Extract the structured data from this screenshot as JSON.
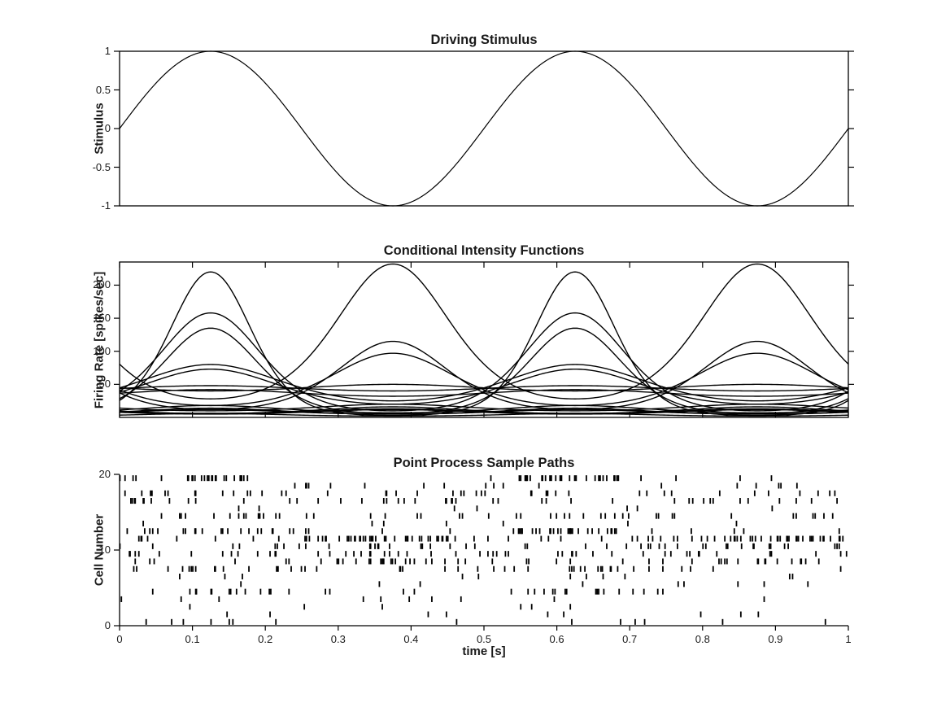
{
  "figure": {
    "background": "#ffffff",
    "line_color": "#000000",
    "text_color": "#1a1a1a"
  },
  "chart_data": [
    {
      "id": "stimulus",
      "type": "line",
      "title": "Driving Stimulus",
      "ylabel": "Stimulus",
      "xlim": [
        0,
        1
      ],
      "ylim": [
        -1,
        1
      ],
      "yticks": [
        {
          "value": 1,
          "label": "1"
        },
        {
          "value": 0.5,
          "label": "0.5"
        },
        {
          "value": 0,
          "label": "0"
        },
        {
          "value": -0.5,
          "label": "-0.5"
        },
        {
          "value": -1,
          "label": "-1"
        }
      ],
      "signal": {
        "form": "sine",
        "frequency_hz": 2,
        "amplitude": 1,
        "phase_deg": 0
      },
      "grid": false,
      "box": true
    },
    {
      "id": "intensity",
      "type": "line",
      "title": "Conditional Intensity Functions",
      "ylabel": "Firing Rate [spikes/sec]",
      "xlim": [
        0,
        1
      ],
      "ylim": [
        0,
        235
      ],
      "yticks": [
        {
          "value": 50,
          "label": "50"
        },
        {
          "value": 100,
          "label": "100"
        },
        {
          "value": 150,
          "label": "150"
        },
        {
          "value": 200,
          "label": "200"
        }
      ],
      "xticks": [
        0,
        0.1,
        0.2,
        0.3,
        0.4,
        0.5,
        0.6,
        0.7,
        0.8,
        0.9,
        1
      ],
      "period_s": 0.5,
      "curves": [
        {
          "cell": 1,
          "peak_rate": 14,
          "trough_rate": 5,
          "peak_time": 0.125
        },
        {
          "cell": 2,
          "peak_rate": 12,
          "trough_rate": 6,
          "peak_time": 0.375
        },
        {
          "cell": 3,
          "peak_rate": 6,
          "trough_rate": 2,
          "peak_time": 0.125
        },
        {
          "cell": 4,
          "peak_rate": 16,
          "trough_rate": 6,
          "peak_time": 0.375
        },
        {
          "cell": 5,
          "peak_rate": 135,
          "trough_rate": 6,
          "peak_time": 0.125
        },
        {
          "cell": 6,
          "peak_rate": 12,
          "trough_rate": 5,
          "peak_time": 0.375
        },
        {
          "cell": 7,
          "peak_rate": 18,
          "trough_rate": 7,
          "peak_time": 0.125
        },
        {
          "cell": 8,
          "peak_rate": 80,
          "trough_rate": 25,
          "peak_time": 0.125
        },
        {
          "cell": 9,
          "peak_rate": 115,
          "trough_rate": 12,
          "peak_time": 0.375
        },
        {
          "cell": 10,
          "peak_rate": 48,
          "trough_rate": 40,
          "peak_time": 0.125
        },
        {
          "cell": 11,
          "peak_rate": 97,
          "trough_rate": 18,
          "peak_time": 0.375
        },
        {
          "cell": 12,
          "peak_rate": 232,
          "trough_rate": 28,
          "peak_time": 0.375
        },
        {
          "cell": 13,
          "peak_rate": 158,
          "trough_rate": 10,
          "peak_time": 0.125
        },
        {
          "cell": 14,
          "peak_rate": 13,
          "trough_rate": 6,
          "peak_time": 0.375
        },
        {
          "cell": 15,
          "peak_rate": 73,
          "trough_rate": 20,
          "peak_time": 0.125
        },
        {
          "cell": 16,
          "peak_rate": 12,
          "trough_rate": 5,
          "peak_time": 0.125
        },
        {
          "cell": 17,
          "peak_rate": 50,
          "trough_rate": 40,
          "peak_time": 0.375
        },
        {
          "cell": 18,
          "peak_rate": 42,
          "trough_rate": 32,
          "peak_time": 0.125
        },
        {
          "cell": 19,
          "peak_rate": 20,
          "trough_rate": 10,
          "peak_time": 0.375
        },
        {
          "cell": 20,
          "peak_rate": 220,
          "trough_rate": 3,
          "peak_time": 0.125
        }
      ],
      "grid": false,
      "box": true
    },
    {
      "id": "raster",
      "type": "scatter",
      "title": "Point Process Sample Paths",
      "ylabel": "Cell Number",
      "xlabel": "time [s]",
      "xlim": [
        0,
        1
      ],
      "ylim": [
        0,
        20
      ],
      "n_cells": 20,
      "seed": 12345,
      "yticks": [
        {
          "value": 0,
          "label": "0"
        },
        {
          "value": 10,
          "label": "10"
        },
        {
          "value": 20,
          "label": "20"
        }
      ],
      "xticks": [
        {
          "value": 0,
          "label": "0"
        },
        {
          "value": 0.1,
          "label": "0.1"
        },
        {
          "value": 0.2,
          "label": "0.2"
        },
        {
          "value": 0.3,
          "label": "0.3"
        },
        {
          "value": 0.4,
          "label": "0.4"
        },
        {
          "value": 0.5,
          "label": "0.5"
        },
        {
          "value": 0.6,
          "label": "0.6"
        },
        {
          "value": 0.7,
          "label": "0.7"
        },
        {
          "value": 0.8,
          "label": "0.8"
        },
        {
          "value": 0.9,
          "label": "0.9"
        },
        {
          "value": 1,
          "label": "1"
        }
      ],
      "grid": false,
      "box": false
    }
  ]
}
